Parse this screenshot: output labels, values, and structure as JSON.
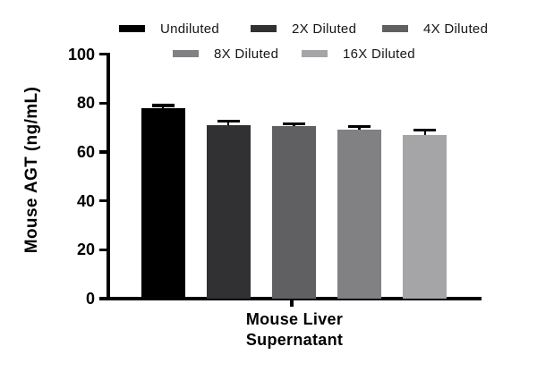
{
  "chart_data": {
    "type": "bar",
    "title": "",
    "ylabel": "Mouse AGT (ng/mL)",
    "xlabel": "Mouse Liver\nSupernatant",
    "x_categories": [
      "Mouse Liver Supernatant"
    ],
    "ylim": [
      0,
      100
    ],
    "yticks": [
      0,
      20,
      40,
      60,
      80,
      100
    ],
    "grid": false,
    "legend_position": "top",
    "series": [
      {
        "name": "Undiluted",
        "value": 78.0,
        "error_plus": 1.1,
        "color": "#000000"
      },
      {
        "name": "2X Diluted",
        "value": 71.0,
        "error_plus": 1.7,
        "color": "#313134"
      },
      {
        "name": "4X Diluted",
        "value": 70.5,
        "error_plus": 1.0,
        "color": "#606062"
      },
      {
        "name": "8X Diluted",
        "value": 69.2,
        "error_plus": 1.3,
        "color": "#818184"
      },
      {
        "name": "16X Diluted",
        "value": 67.0,
        "error_plus": 1.9,
        "color": "#a5a5a8"
      }
    ],
    "error_bar_color": "#000000",
    "axis_color": "#000000"
  }
}
